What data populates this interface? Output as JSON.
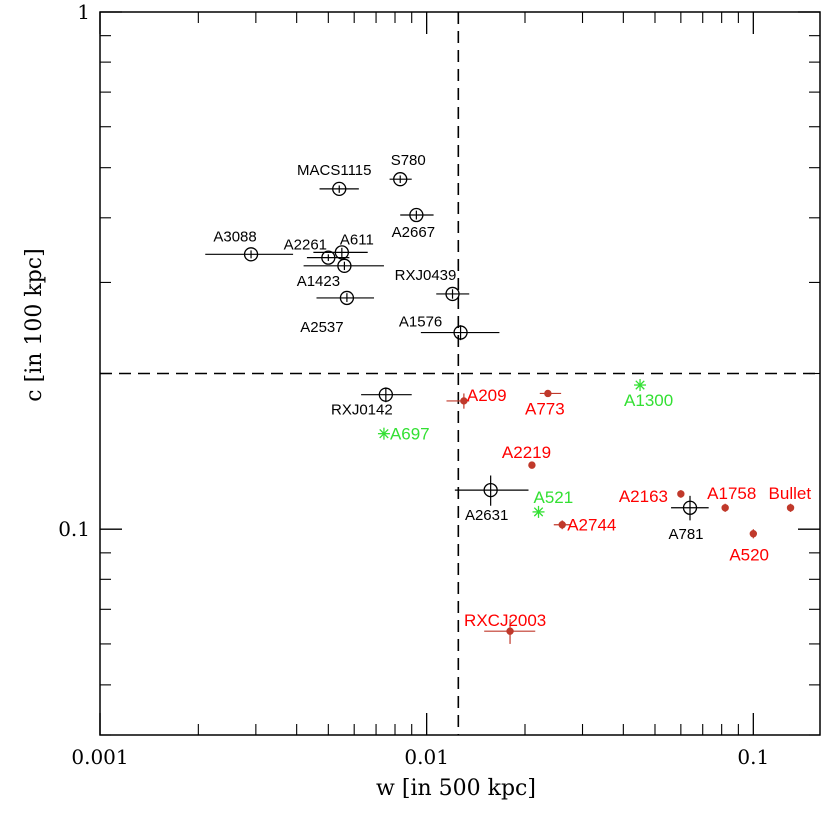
{
  "chart_data": {
    "type": "scatter",
    "x_scale": "log",
    "y_scale": "log",
    "xlim": [
      0.001,
      0.16
    ],
    "ylim": [
      0.04,
      1.0
    ],
    "xlabel": "w [in 500 kpc]",
    "ylabel": "c [in 100 kpc]",
    "x_tick_labels": [
      {
        "value": 0.001,
        "text": "0.001"
      },
      {
        "value": 0.01,
        "text": "0.01"
      },
      {
        "value": 0.1,
        "text": "0.1"
      }
    ],
    "y_tick_labels": [
      {
        "value": 0.1,
        "text": "0.1"
      },
      {
        "value": 1.0,
        "text": "1"
      }
    ],
    "reference_lines": {
      "w": 0.0125,
      "c": 0.2
    },
    "colors": {
      "relaxed": "#000000",
      "disturbed": "#ff0000",
      "disturbed_marker": "#c0392b",
      "intermediate": "#33e033"
    },
    "series": [
      {
        "name": "relaxed",
        "marker": "open-circle",
        "points": [
          {
            "label": "MACS1115",
            "w": 0.0054,
            "c": 0.455,
            "xerr": [
              0.0047,
              0.0062
            ],
            "yerr": [
              0.447,
              0.462
            ]
          },
          {
            "label": "S780",
            "w": 0.0083,
            "c": 0.475,
            "xerr": [
              0.0077,
              0.009
            ],
            "yerr": [
              0.467,
              0.483
            ]
          },
          {
            "label": "A2667",
            "w": 0.0093,
            "c": 0.405,
            "xerr": [
              0.0083,
              0.0105
            ],
            "yerr": [
              0.397,
              0.413
            ]
          },
          {
            "label": "A3088",
            "w": 0.0029,
            "c": 0.34,
            "xerr": [
              0.0021,
              0.0039
            ],
            "yerr": [
              0.334,
              0.346
            ]
          },
          {
            "label": "A2261",
            "w": 0.005,
            "c": 0.335,
            "xerr": [
              0.0043,
              0.0058
            ],
            "yerr": [
              0.33,
              0.34
            ]
          },
          {
            "label": "A611",
            "w": 0.0055,
            "c": 0.343,
            "xerr": [
              0.0045,
              0.0066
            ],
            "yerr": [
              0.336,
              0.35
            ]
          },
          {
            "label": "A1423",
            "w": 0.0056,
            "c": 0.323,
            "xerr": [
              0.0042,
              0.0074
            ],
            "yerr": [
              0.317,
              0.329
            ]
          },
          {
            "label": "A2537",
            "w": 0.0057,
            "c": 0.28,
            "xerr": [
              0.0046,
              0.0069
            ],
            "yerr": [
              0.275,
              0.286
            ]
          },
          {
            "label": "RXJ0439",
            "w": 0.012,
            "c": 0.285,
            "xerr": [
              0.0107,
              0.0135
            ],
            "yerr": [
              0.279,
              0.291
            ]
          },
          {
            "label": "A1576",
            "w": 0.0127,
            "c": 0.24,
            "xerr": [
              0.0096,
              0.0167
            ],
            "yerr": [
              0.232,
              0.248
            ]
          },
          {
            "label": "RXJ0142",
            "w": 0.0075,
            "c": 0.182,
            "xerr": [
              0.0063,
              0.009
            ],
            "yerr": [
              0.176,
              0.188
            ]
          },
          {
            "label": "A2631",
            "w": 0.0157,
            "c": 0.119,
            "xerr": [
              0.0122,
              0.0205
            ],
            "yerr": [
              0.111,
              0.127
            ]
          },
          {
            "label": "A781",
            "w": 0.064,
            "c": 0.11,
            "xerr": [
              0.056,
              0.073
            ],
            "yerr": [
              0.104,
              0.116
            ]
          }
        ]
      },
      {
        "name": "disturbed",
        "marker": "filled-dot",
        "points": [
          {
            "label": "A209",
            "w": 0.013,
            "c": 0.177,
            "xerr": [
              0.0115,
              0.0135
            ],
            "yerr": [
              0.171,
              0.183
            ]
          },
          {
            "label": "A773",
            "w": 0.0235,
            "c": 0.183,
            "xerr": [
              0.0222,
              0.0258
            ],
            "yerr": [
              0.181,
              0.185
            ]
          },
          {
            "label": "A2219",
            "w": 0.021,
            "c": 0.133,
            "xerr": [
              0.0205,
              0.0215
            ],
            "yerr": [
              0.131,
              0.135
            ]
          },
          {
            "label": "A2744",
            "w": 0.026,
            "c": 0.102,
            "xerr": [
              0.0245,
              0.0275
            ],
            "yerr": [
              0.1,
              0.104
            ]
          },
          {
            "label": "A2163",
            "w": 0.06,
            "c": 0.117,
            "xerr": [
              0.059,
              0.061
            ],
            "yerr": [
              0.115,
              0.119
            ]
          },
          {
            "label": "A1758",
            "w": 0.082,
            "c": 0.11,
            "xerr": [
              0.081,
              0.083
            ],
            "yerr": [
              0.108,
              0.112
            ]
          },
          {
            "label": "Bullet",
            "w": 0.13,
            "c": 0.11,
            "xerr": [
              0.128,
              0.132
            ],
            "yerr": [
              0.108,
              0.112
            ]
          },
          {
            "label": "A520",
            "w": 0.1,
            "c": 0.098,
            "xerr": [
              0.099,
              0.101
            ],
            "yerr": [
              0.096,
              0.1
            ]
          },
          {
            "label": "RXCJ2003",
            "w": 0.018,
            "c": 0.0635,
            "xerr": [
              0.015,
              0.0215
            ],
            "yerr": [
              0.06,
              0.067
            ]
          }
        ]
      },
      {
        "name": "intermediate",
        "marker": "asterisk",
        "points": [
          {
            "label": "A1300",
            "w": 0.045,
            "c": 0.19
          },
          {
            "label": "A697",
            "w": 0.0074,
            "c": 0.153
          },
          {
            "label": "A521",
            "w": 0.022,
            "c": 0.108
          }
        ]
      }
    ]
  }
}
